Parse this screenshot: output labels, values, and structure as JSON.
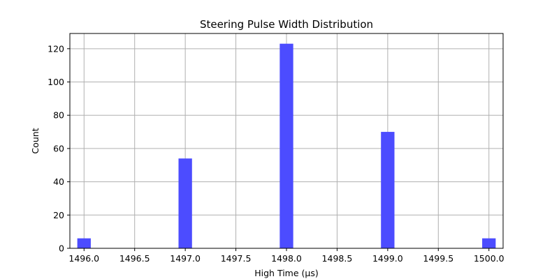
{
  "chart_data": {
    "type": "bar",
    "title": "Steering Pulse Width Distribution",
    "xlabel": "High Time (µs)",
    "ylabel": "Count",
    "xlim": [
      1495.86,
      1500.14
    ],
    "ylim": [
      0,
      129.15
    ],
    "bin_width": 0.1333,
    "bars": [
      {
        "x": 1496.0,
        "value": 6
      },
      {
        "x": 1497.0,
        "value": 54
      },
      {
        "x": 1498.0,
        "value": 123
      },
      {
        "x": 1499.0,
        "value": 70
      },
      {
        "x": 1500.0,
        "value": 6
      }
    ],
    "xticks": [
      1496.0,
      1496.5,
      1497.0,
      1497.5,
      1498.0,
      1498.5,
      1499.0,
      1499.5,
      1500.0
    ],
    "xtick_labels": [
      "1496.0",
      "1496.5",
      "1497.0",
      "1497.5",
      "1498.0",
      "1498.5",
      "1499.0",
      "1499.5",
      "1500.0"
    ],
    "yticks": [
      0,
      20,
      40,
      60,
      80,
      100,
      120
    ],
    "ytick_labels": [
      "0",
      "20",
      "40",
      "60",
      "80",
      "100",
      "120"
    ],
    "grid": true,
    "bar_color": "#4c4cff",
    "grid_color": "#b0b0b0"
  }
}
